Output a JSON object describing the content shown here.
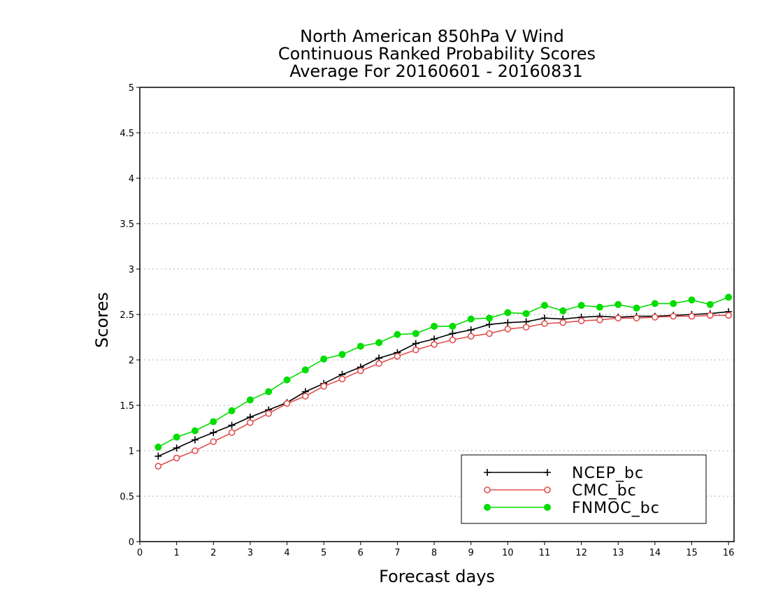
{
  "chart_data": {
    "type": "line",
    "title": [
      "North American 850hPa V Wind",
      "Continuous Ranked Probability Scores",
      "Average For 20160601 - 20160831"
    ],
    "xlabel": "Forecast days",
    "ylabel": "Scores",
    "xlim": [
      0,
      16.15
    ],
    "ylim": [
      0,
      5
    ],
    "xticks": [
      0,
      1,
      2,
      3,
      4,
      5,
      6,
      7,
      8,
      9,
      10,
      11,
      12,
      13,
      14,
      15,
      16
    ],
    "yticks": [
      0,
      0.5,
      1,
      1.5,
      2,
      2.5,
      3,
      3.5,
      4,
      4.5,
      5
    ],
    "ytick_labels": [
      "0",
      "0.5",
      "1",
      "1.5",
      "2",
      "2.5",
      "3",
      "3.5",
      "4",
      "4.5",
      "5"
    ],
    "grid": true,
    "legend_position": "bottom-right",
    "x": [
      0.5,
      1,
      1.5,
      2,
      2.5,
      3,
      3.5,
      4,
      4.5,
      5,
      5.5,
      6,
      6.5,
      7,
      7.5,
      8,
      8.5,
      9,
      9.5,
      10,
      10.5,
      11,
      11.5,
      12,
      12.5,
      13,
      13.5,
      14,
      14.5,
      15,
      15.5,
      16
    ],
    "series": [
      {
        "name": "NCEP_bc",
        "color": "#000000",
        "marker": "plus",
        "values": [
          0.94,
          1.03,
          1.12,
          1.2,
          1.28,
          1.37,
          1.45,
          1.53,
          1.65,
          1.74,
          1.84,
          1.92,
          2.02,
          2.08,
          2.18,
          2.23,
          2.29,
          2.33,
          2.39,
          2.41,
          2.42,
          2.46,
          2.45,
          2.47,
          2.48,
          2.47,
          2.48,
          2.48,
          2.49,
          2.5,
          2.51,
          2.53
        ]
      },
      {
        "name": "CMC_bc",
        "color": "#e05050",
        "marker": "open-circle",
        "values": [
          0.83,
          0.92,
          1.0,
          1.1,
          1.2,
          1.31,
          1.41,
          1.52,
          1.6,
          1.71,
          1.79,
          1.88,
          1.96,
          2.04,
          2.11,
          2.17,
          2.22,
          2.26,
          2.29,
          2.34,
          2.36,
          2.4,
          2.41,
          2.43,
          2.44,
          2.46,
          2.46,
          2.47,
          2.48,
          2.48,
          2.49,
          2.49
        ]
      },
      {
        "name": "FNMOC_bc",
        "color": "#00dd00",
        "marker": "filled-circle",
        "values": [
          1.04,
          1.15,
          1.22,
          1.32,
          1.44,
          1.56,
          1.65,
          1.78,
          1.89,
          2.01,
          2.06,
          2.15,
          2.19,
          2.28,
          2.29,
          2.37,
          2.37,
          2.45,
          2.46,
          2.52,
          2.51,
          2.6,
          2.54,
          2.6,
          2.58,
          2.61,
          2.57,
          2.62,
          2.62,
          2.66,
          2.61,
          2.69
        ]
      }
    ]
  }
}
